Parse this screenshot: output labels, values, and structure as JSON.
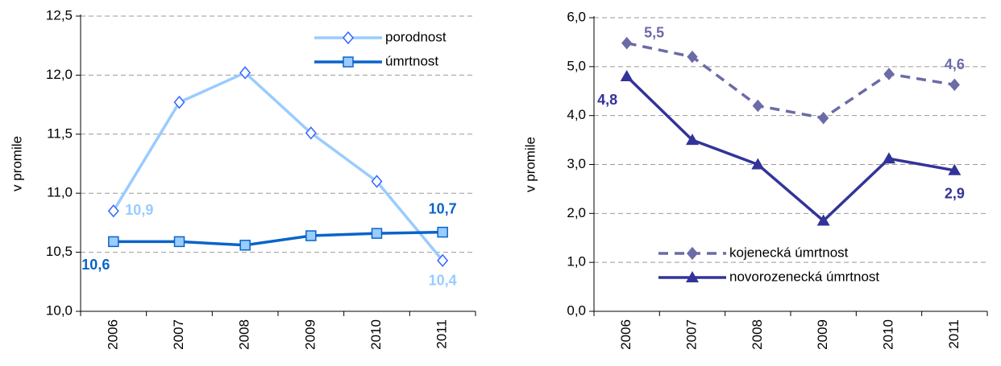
{
  "chart_data": [
    {
      "type": "line",
      "y_label": "v promile",
      "categories": [
        "2006",
        "2007",
        "2008",
        "2009",
        "2010",
        "2011"
      ],
      "ylim": [
        10,
        12.5
      ],
      "yticks": [
        {
          "value": 10,
          "label": "10,0"
        },
        {
          "value": 10.5,
          "label": "10,5"
        },
        {
          "value": 11,
          "label": "11,0"
        },
        {
          "value": 11.5,
          "label": "11,5"
        },
        {
          "value": 12,
          "label": "12,0"
        },
        {
          "value": 12.5,
          "label": "12,5"
        }
      ],
      "grid": true,
      "legend": "upper right",
      "series": [
        {
          "name": "porodnost",
          "color": "#99ccff",
          "marker": "diamond-open",
          "values": [
            10.85,
            11.77,
            12.02,
            11.51,
            11.1,
            10.43
          ],
          "value_labels": [
            "10,9",
            null,
            null,
            null,
            null,
            "10,4"
          ]
        },
        {
          "name": "úmrtnost",
          "color": "#0a64c8",
          "marker": "square",
          "values": [
            10.59,
            10.59,
            10.56,
            10.64,
            10.66,
            10.67
          ],
          "value_labels": [
            "10,6",
            null,
            null,
            null,
            null,
            "10,7"
          ]
        }
      ]
    },
    {
      "type": "line",
      "y_label": "v promile",
      "categories": [
        "2006",
        "2007",
        "2008",
        "2009",
        "2010",
        "2011"
      ],
      "ylim": [
        0,
        6
      ],
      "yticks": [
        {
          "value": 0,
          "label": "0,0"
        },
        {
          "value": 1,
          "label": "1,0"
        },
        {
          "value": 2,
          "label": "2,0"
        },
        {
          "value": 3,
          "label": "3,0"
        },
        {
          "value": 4,
          "label": "4,0"
        },
        {
          "value": 5,
          "label": "5,0"
        },
        {
          "value": 6,
          "label": "6,0"
        }
      ],
      "grid": true,
      "legend": "lower left",
      "series": [
        {
          "name": "kojenecká úmrtnost",
          "color": "#6b6ba8",
          "marker": "diamond",
          "dashed": true,
          "values": [
            5.48,
            5.2,
            4.2,
            3.95,
            4.85,
            4.63
          ],
          "value_labels": [
            "5,5",
            null,
            null,
            null,
            null,
            "4,6"
          ]
        },
        {
          "name": "novorozenecká úmrtnost",
          "color": "#333399",
          "marker": "triangle",
          "values": [
            4.8,
            3.5,
            3.0,
            1.85,
            3.12,
            2.88
          ],
          "value_labels": [
            "4,8",
            null,
            null,
            null,
            null,
            "2,9"
          ]
        }
      ]
    }
  ]
}
